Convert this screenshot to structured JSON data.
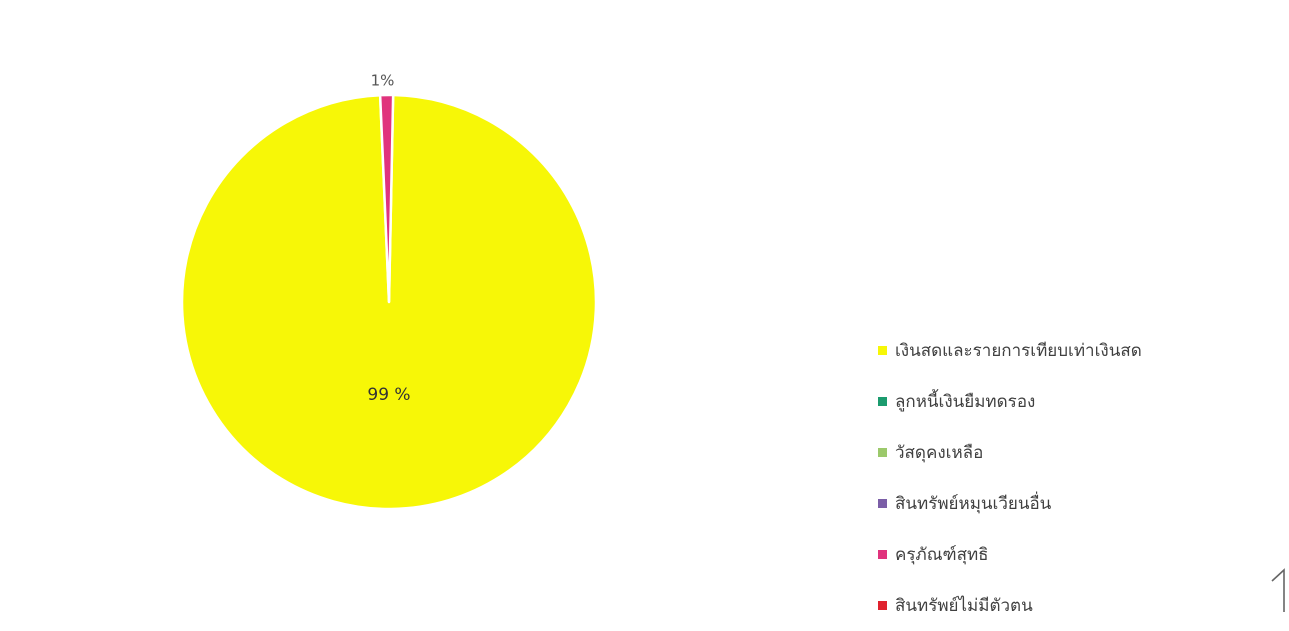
{
  "chart_data": {
    "type": "pie",
    "title": "",
    "slices": [
      {
        "label": "เงินสดและรายการเทียบเท่าเงินสด",
        "value": 99,
        "color": "#f7f707",
        "data_label": "99 %"
      },
      {
        "label": "ลูกหนี้เงินยืมทดรอง",
        "value": 0,
        "color": "#1b9b6e",
        "data_label": ""
      },
      {
        "label": "วัสดุคงเหลือ",
        "value": 0,
        "color": "#9cc96b",
        "data_label": ""
      },
      {
        "label": "สินทรัพย์หมุนเวียนอื่น",
        "value": 0,
        "color": "#7b5ea7",
        "data_label": ""
      },
      {
        "label": "ครุภัณฑ์สุทธิ",
        "value": 1,
        "color": "#e0337d",
        "data_label": "1%"
      },
      {
        "label": "สินทรัพย์ไม่มีตัวตน",
        "value": 0,
        "color": "#e0222e",
        "data_label": ""
      }
    ],
    "legend_position": "right"
  }
}
